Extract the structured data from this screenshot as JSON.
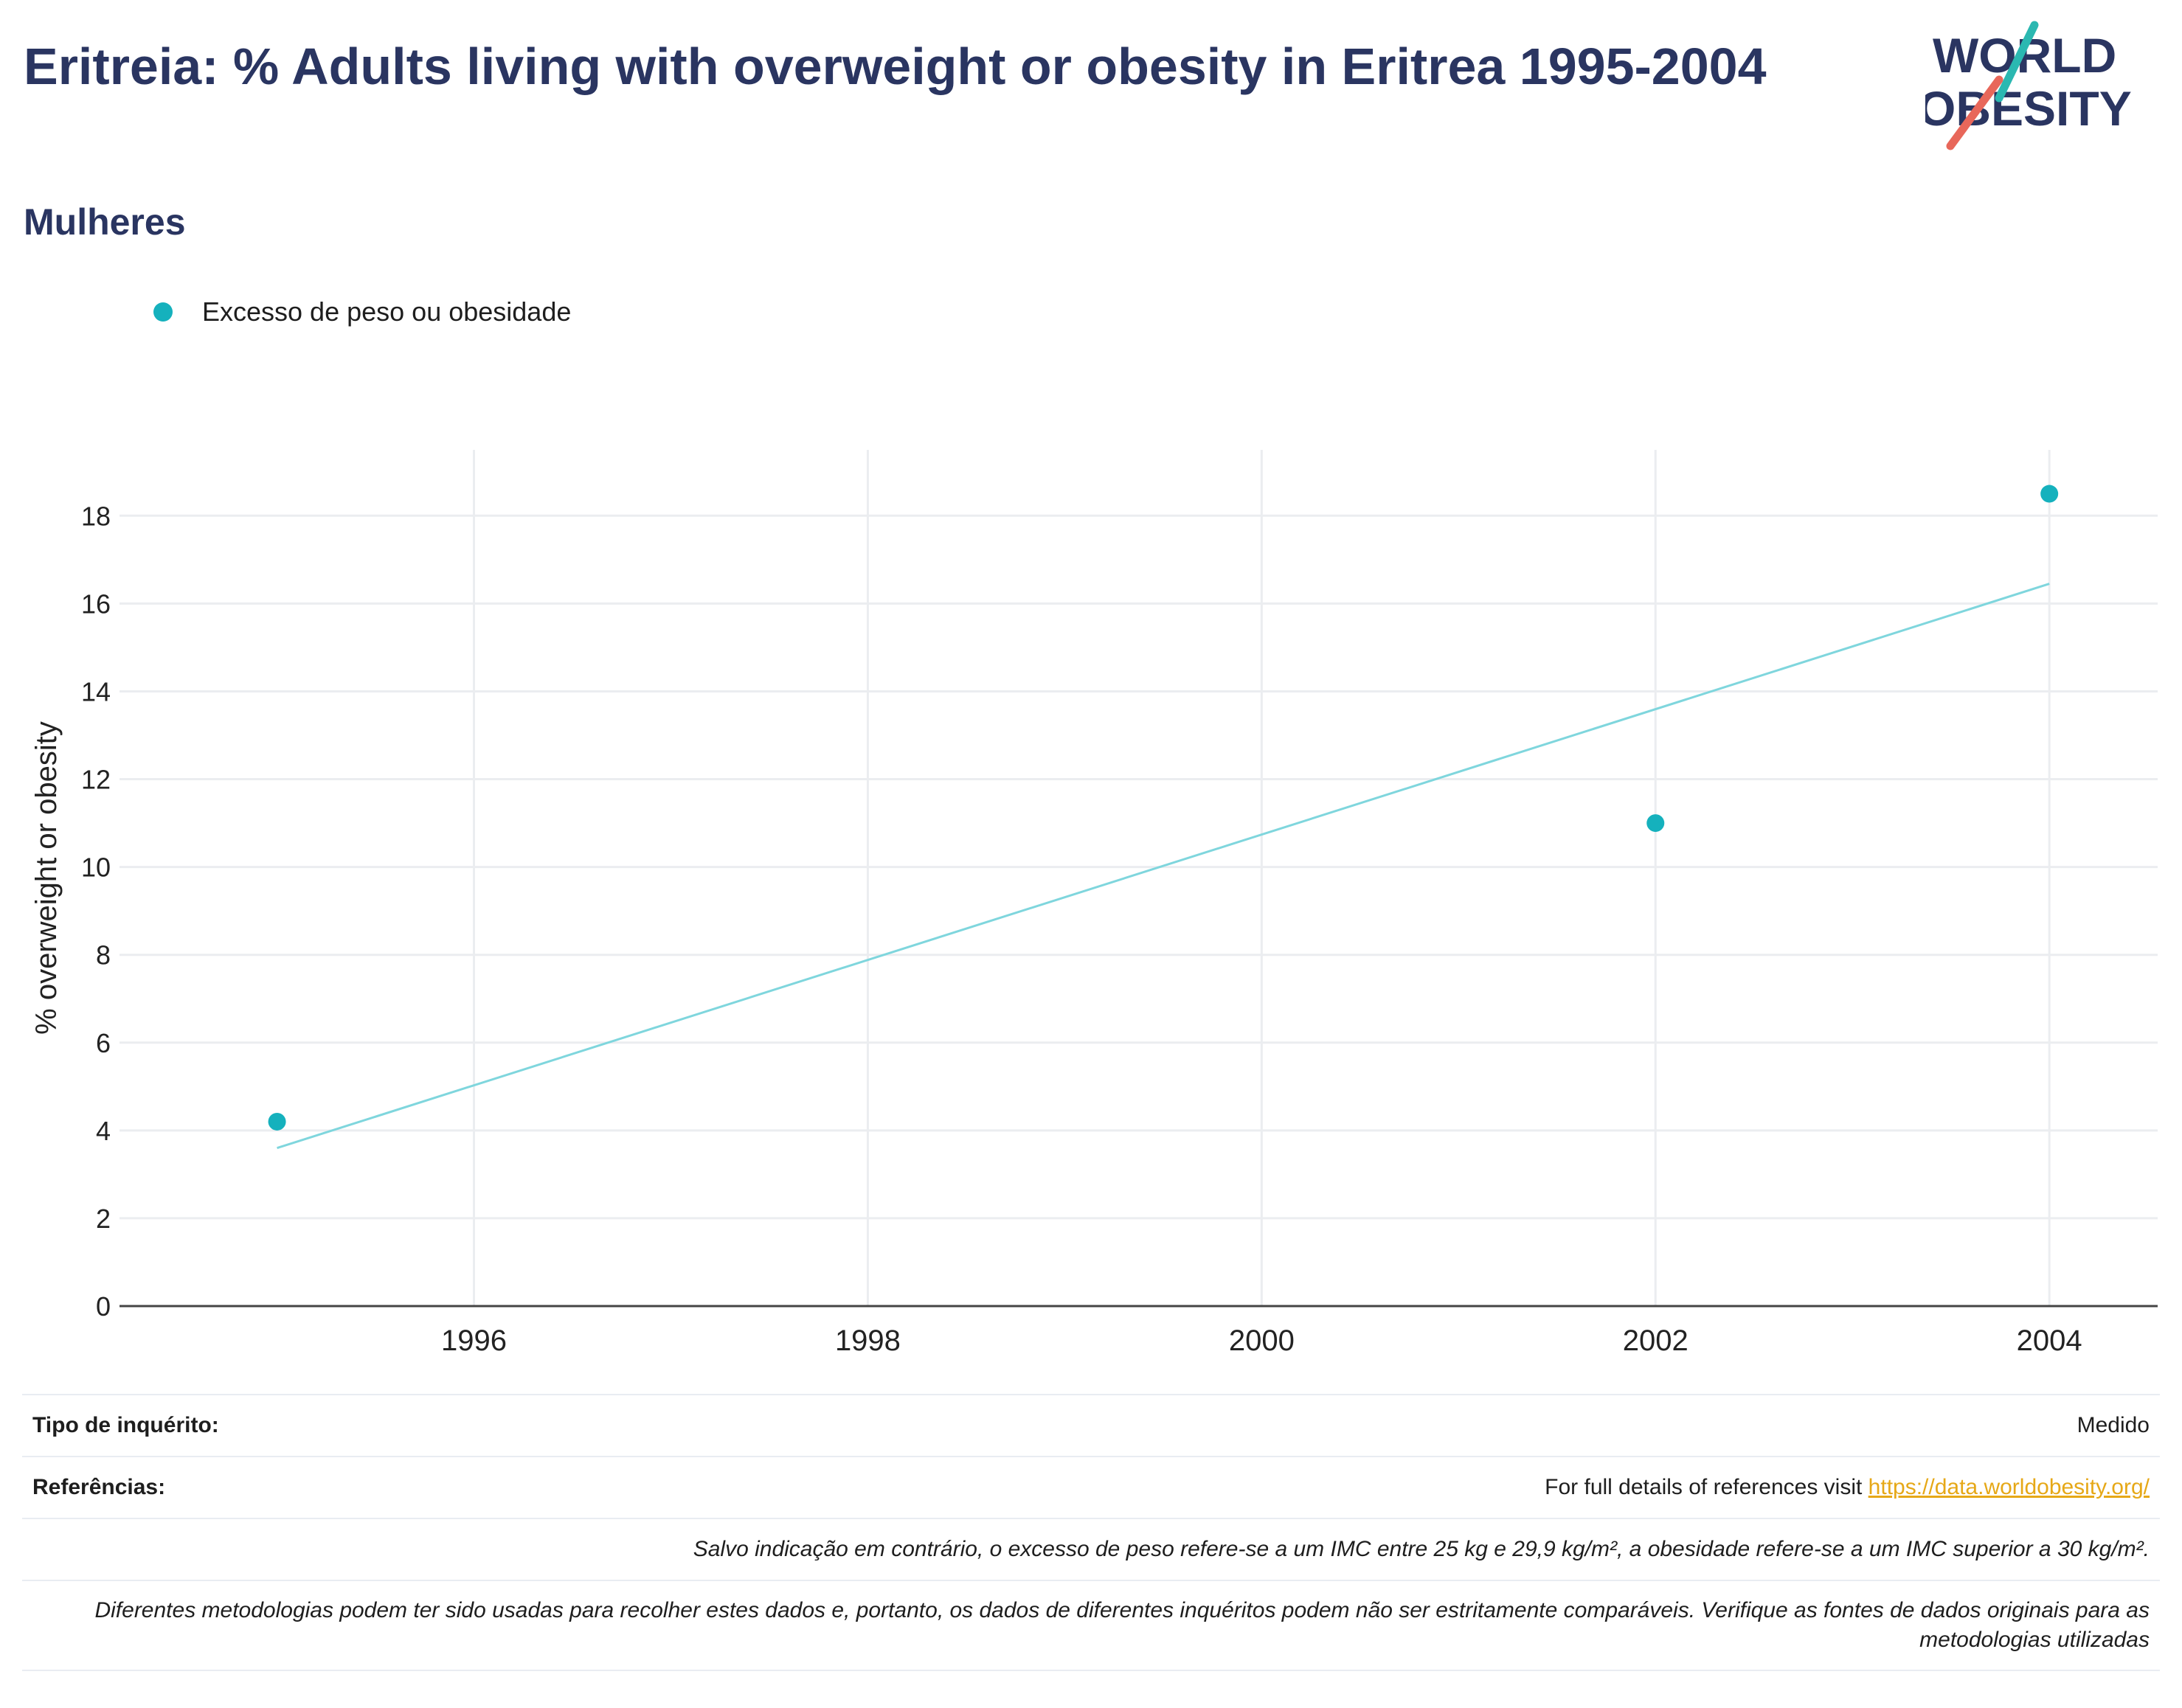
{
  "header": {
    "title": "Eritreia: % Adults living with overweight or obesity in Eritrea 1995-2004",
    "subtitle": "Mulheres"
  },
  "logo": {
    "line1": "WORLD",
    "line2": "OBESITY"
  },
  "legend": {
    "label": "Excesso de peso ou obesidade"
  },
  "colors": {
    "title": "#2a3561",
    "marker": "#15b1bd",
    "trend": "#7fd6dd",
    "link": "#e6a817",
    "slash_teal": "#2bb8b1",
    "slash_coral": "#e8675a"
  },
  "chart_data": {
    "type": "scatter",
    "series": [
      {
        "name": "Excesso de peso ou obesidade",
        "x": [
          1995,
          2002,
          2004
        ],
        "y": [
          4.2,
          11.0,
          18.5
        ]
      }
    ],
    "trendline": {
      "x": [
        1995,
        2004
      ],
      "y": [
        3.6,
        16.45
      ]
    },
    "ylabel": "% overweight or obesity",
    "xlabel": "",
    "xlim": [
      1994.2,
      2004.55
    ],
    "ylim": [
      0,
      19.5
    ],
    "xticks": [
      1996,
      1998,
      2000,
      2002,
      2004
    ],
    "yticks": [
      0,
      2,
      4,
      6,
      8,
      10,
      12,
      14,
      16,
      18
    ],
    "grid": true,
    "legend_position": "top-left"
  },
  "footer": {
    "survey_label": "Tipo de inquérito:",
    "survey_value": "Medido",
    "refs_label": "Referências:",
    "refs_text": "For full details of references visit",
    "refs_link": "https://data.worldobesity.org/",
    "note1": "Salvo indicação em contrário, o excesso de peso refere-se a um IMC entre 25 kg e 29,9 kg/m², a obesidade refere-se a um IMC superior a 30 kg/m².",
    "note2": "Diferentes metodologias podem ter sido usadas para recolher estes dados e, portanto, os dados de diferentes inquéritos podem não ser estritamente comparáveis. Verifique as fontes de dados originais para as metodologias utilizadas"
  }
}
